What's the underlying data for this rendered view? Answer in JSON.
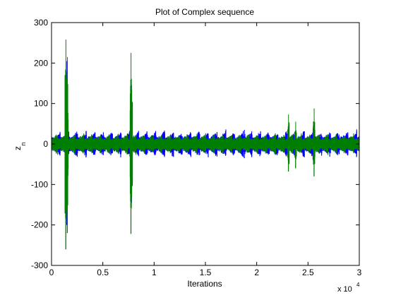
{
  "chart_data": {
    "type": "line",
    "title": "Plot of Complex sequence",
    "xlabel": "Iterations",
    "ylabel_main": "z",
    "ylabel_sub": "n",
    "x_multiplier": "x 10",
    "x_multiplier_exp": "4",
    "xlim": [
      0,
      30000
    ],
    "ylim": [
      -300,
      300
    ],
    "x_ticks": [
      0,
      5000,
      10000,
      15000,
      20000,
      25000,
      30000
    ],
    "x_tick_labels": [
      "0",
      "0.5",
      "1",
      "1.5",
      "2",
      "2.5",
      "3"
    ],
    "y_ticks": [
      -300,
      -200,
      -100,
      0,
      100,
      200,
      300
    ],
    "y_tick_labels": [
      "-300",
      "-200",
      "-100",
      "0",
      "100",
      "200",
      "300"
    ],
    "grid": false,
    "series": [
      {
        "color": "#0000ff",
        "baseline_amplitude": 28,
        "bursts": [
          {
            "x": 1500,
            "ymax": 205,
            "ymin": -200
          },
          {
            "x": 7800,
            "ymax": 145,
            "ymin": -145
          },
          {
            "x": 18800,
            "ymax": 35,
            "ymin": -35
          },
          {
            "x": 25500,
            "ymax": 38,
            "ymin": -38
          }
        ]
      },
      {
        "color": "#007f00",
        "baseline_amplitude": 22,
        "bursts": [
          {
            "x": 1400,
            "ymax": 258,
            "ymin": -260
          },
          {
            "x": 1550,
            "ymax": 215,
            "ymin": -220
          },
          {
            "x": 7750,
            "ymax": 225,
            "ymin": -222
          },
          {
            "x": 7820,
            "ymax": 135,
            "ymin": -130
          },
          {
            "x": 23100,
            "ymax": 73,
            "ymin": -68
          },
          {
            "x": 25600,
            "ymax": 88,
            "ymin": -80
          },
          {
            "x": 23800,
            "ymax": 55,
            "ymin": -60
          }
        ]
      }
    ]
  }
}
